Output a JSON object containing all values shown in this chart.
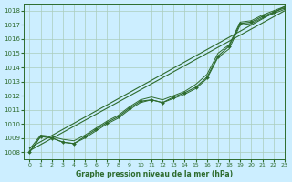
{
  "title": "Graphe pression niveau de la mer (hPa)",
  "bg_color": "#cceeff",
  "grid_color": "#aaccbb",
  "line_color": "#2d6b2d",
  "xlim": [
    -0.5,
    23
  ],
  "ylim": [
    1007.5,
    1018.5
  ],
  "xticks": [
    0,
    1,
    2,
    3,
    4,
    5,
    6,
    7,
    8,
    9,
    10,
    11,
    12,
    13,
    14,
    15,
    16,
    17,
    18,
    19,
    20,
    21,
    22,
    23
  ],
  "yticks": [
    1008,
    1009,
    1010,
    1011,
    1012,
    1013,
    1014,
    1015,
    1016,
    1017,
    1018
  ],
  "line1_x": [
    0,
    1,
    2,
    3,
    4,
    5,
    6,
    7,
    8,
    9,
    10,
    11,
    12,
    13,
    14,
    15,
    16,
    17,
    18,
    19,
    20,
    21,
    22,
    23
  ],
  "line1_y": [
    1008.0,
    1009.1,
    1009.0,
    1008.7,
    1008.6,
    1009.0,
    1009.5,
    1010.0,
    1010.4,
    1011.0,
    1011.5,
    1011.7,
    1011.5,
    1011.8,
    1012.1,
    1012.5,
    1013.2,
    1014.7,
    1015.3,
    1017.0,
    1017.1,
    1017.5,
    1017.8,
    1018.1
  ],
  "line2_x": [
    0,
    1,
    2,
    3,
    4,
    5,
    6,
    7,
    8,
    9,
    10,
    11,
    12,
    13,
    14,
    15,
    16,
    17,
    18,
    19,
    20,
    21,
    22,
    23
  ],
  "line2_y": [
    1008.2,
    1009.2,
    1009.1,
    1008.9,
    1008.8,
    1009.2,
    1009.7,
    1010.2,
    1010.6,
    1011.2,
    1011.7,
    1011.9,
    1011.7,
    1012.0,
    1012.3,
    1012.8,
    1013.5,
    1015.0,
    1015.6,
    1017.2,
    1017.3,
    1017.7,
    1018.0,
    1018.3
  ],
  "line3_x": [
    0,
    23
  ],
  "line3_y": [
    1008.1,
    1018.0
  ],
  "line4_x": [
    0,
    23
  ],
  "line4_y": [
    1008.3,
    1018.3
  ],
  "marked_x": [
    0,
    1,
    2,
    3,
    4,
    5,
    6,
    7,
    8,
    9,
    10,
    11,
    12,
    13,
    14,
    15,
    16,
    17,
    18,
    19,
    20,
    21,
    22,
    23
  ],
  "marked_y": [
    1008.0,
    1009.1,
    1009.0,
    1008.7,
    1008.6,
    1009.1,
    1009.6,
    1010.1,
    1010.5,
    1011.1,
    1011.6,
    1011.7,
    1011.5,
    1011.9,
    1012.2,
    1012.6,
    1013.3,
    1014.8,
    1015.5,
    1017.1,
    1017.2,
    1017.6,
    1017.9,
    1018.2
  ]
}
